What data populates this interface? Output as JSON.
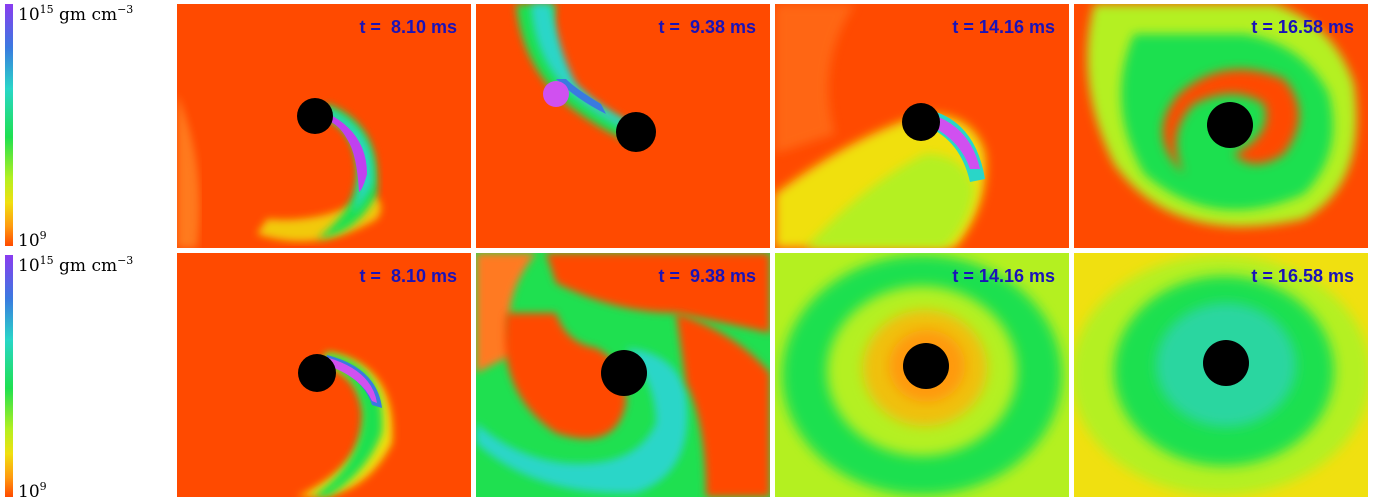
{
  "colorbar": {
    "top_exponent": "15",
    "top_base": "10",
    "unit_text": " gm cm",
    "unit_exponent": "−3",
    "bottom_base": "10",
    "bottom_exponent": "9",
    "gradient_colors": [
      "#8a3cf0",
      "#3a7ae0",
      "#29d6c8",
      "#1fe050",
      "#b4f020",
      "#f0e010",
      "#ff9a10",
      "#ff4a00"
    ]
  },
  "rows": [
    {
      "panels": [
        {
          "time": "t =  8.10 ms"
        },
        {
          "time": "t =  9.38 ms"
        },
        {
          "time": "t = 14.16 ms"
        },
        {
          "time": "t = 16.58 ms"
        }
      ]
    },
    {
      "panels": [
        {
          "time": "t =  8.10 ms"
        },
        {
          "time": "t =  9.38 ms"
        },
        {
          "time": "t = 14.16 ms"
        },
        {
          "time": "t = 16.58 ms"
        }
      ]
    }
  ],
  "colors": {
    "background_low_density": "#ff4a00",
    "black_hole": "#000000",
    "time_label": "#1a13b8"
  }
}
